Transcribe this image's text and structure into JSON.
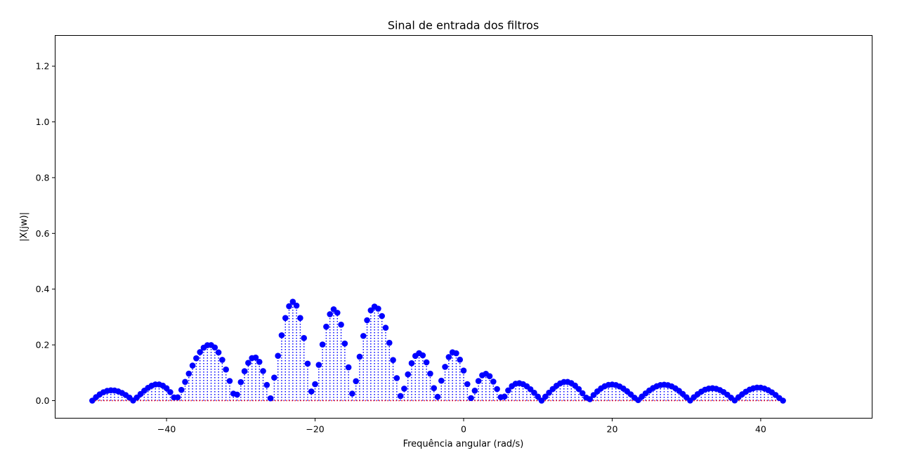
{
  "chart_data": {
    "type": "stem",
    "title": "Sinal de entrada dos filtros",
    "xlabel": "Frequência angular (rad/s)",
    "ylabel": "|X(jw)|",
    "xlim": [
      -55,
      55
    ],
    "ylim": [
      -0.063,
      1.31
    ],
    "xticks": [
      -40,
      -20,
      0,
      20,
      40
    ],
    "xtick_labels": [
      "−40",
      "−20",
      "0",
      "20",
      "40"
    ],
    "yticks": [
      0.0,
      0.2,
      0.4,
      0.6,
      0.8,
      1.0,
      1.2
    ],
    "ytick_labels": [
      "0.0",
      "0.2",
      "0.4",
      "0.6",
      "0.8",
      "1.0",
      "1.2"
    ],
    "grid": false,
    "legend": "none",
    "series": [
      {
        "marker_color": "#0000ff",
        "stem_style": "dotted",
        "baseline_color": "#ff0000",
        "x_start": -50,
        "x_step": 0.5,
        "values": [
          0,
          0.0123,
          0.0225,
          0.0301,
          0.035,
          0.037,
          0.0363,
          0.0331,
          0.0276,
          0.0201,
          0.011,
          0.0004,
          0.0112,
          0.0237,
          0.0356,
          0.0459,
          0.0537,
          0.058,
          0.0582,
          0.0538,
          0.0446,
          0.0304,
          0.0114,
          0.0118,
          0.0385,
          0.0673,
          0.0969,
          0.1258,
          0.152,
          0.174,
          0.19,
          0.1988,
          0.1993,
          0.1907,
          0.1729,
          0.1462,
          0.1116,
          0.0705,
          0.0252,
          0.0216,
          0.0664,
          0.1056,
          0.1355,
          0.1526,
          0.1544,
          0.1391,
          0.1061,
          0.0562,
          0.0083,
          0.0827,
          0.1607,
          0.2346,
          0.2965,
          0.3386,
          0.3548,
          0.3409,
          0.2964,
          0.2246,
          0.1328,
          0.0329,
          0.059,
          0.1283,
          0.2014,
          0.2653,
          0.31,
          0.3278,
          0.3152,
          0.2726,
          0.2049,
          0.1194,
          0.0252,
          0.0697,
          0.1576,
          0.2321,
          0.2884,
          0.3238,
          0.3375,
          0.3299,
          0.3035,
          0.2614,
          0.2074,
          0.1457,
          0.0807,
          0.0165,
          0.0429,
          0.0942,
          0.1343,
          0.1604,
          0.1702,
          0.1625,
          0.1374,
          0.0969,
          0.0449,
          0.0138,
          0.0715,
          0.121,
          0.1564,
          0.1733,
          0.1699,
          0.1468,
          0.1078,
          0.0592,
          0.0091,
          0.0358,
          0.0703,
          0.0908,
          0.0963,
          0.0877,
          0.0681,
          0.0415,
          0.0125,
          0.0145,
          0.0367,
          0.0521,
          0.0605,
          0.0625,
          0.0591,
          0.0515,
          0.0408,
          0.0281,
          0.0143,
          0.0001,
          0.0142,
          0.0284,
          0.0417,
          0.0533,
          0.062,
          0.0669,
          0.0672,
          0.0627,
          0.0539,
          0.0415,
          0.0266,
          0.0108,
          0.0052,
          0.0201,
          0.0333,
          0.0441,
          0.0519,
          0.0565,
          0.0578,
          0.0558,
          0.0509,
          0.0434,
          0.0338,
          0.0226,
          0.0105,
          0.0021,
          0.0145,
          0.0261,
          0.0364,
          0.0451,
          0.0517,
          0.0558,
          0.0571,
          0.0556,
          0.0513,
          0.0444,
          0.0352,
          0.0242,
          0.0121,
          0.0003,
          0.0122,
          0.0231,
          0.0323,
          0.0391,
          0.0433,
          0.0445,
          0.0427,
          0.038,
          0.0307,
          0.0214,
          0.0106,
          0.0008,
          0.0121,
          0.0227,
          0.032,
          0.0394,
          0.0444,
          0.0468,
          0.0465,
          0.0434,
          0.0377,
          0.0298,
          0.0202,
          0.0094,
          0
        ]
      }
    ]
  }
}
